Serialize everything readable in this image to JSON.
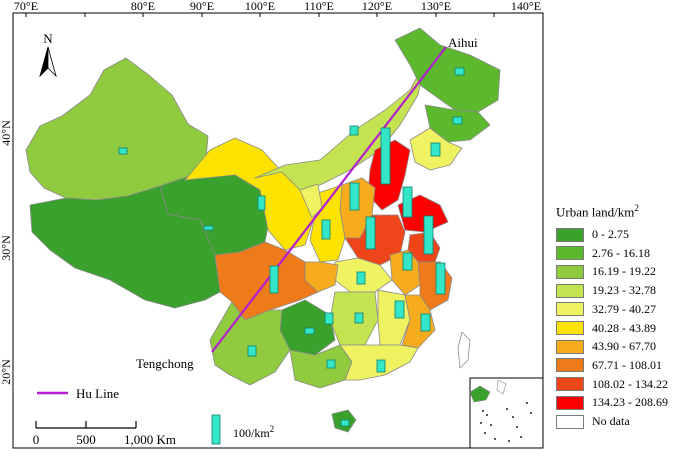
{
  "axis": {
    "longitude_ticks": [
      "70°E",
      "80°E",
      "90°E",
      "100°E",
      "110°E",
      "120°E",
      "130°E",
      "140°E"
    ],
    "latitude_ticks": [
      "40°N",
      "30°N",
      "20°N"
    ]
  },
  "north_arrow": {
    "label": "N"
  },
  "places": {
    "aihui": "Aihui",
    "tengchong": "Tengchong"
  },
  "hu_line": {
    "label": "Hu Line",
    "color": "#b31fd1"
  },
  "scale_bar": {
    "ticks": [
      "0",
      "500",
      "1,000 Km"
    ]
  },
  "bar_symbol": {
    "label": "100/km",
    "label_sup": "2",
    "color": "#33e6c8"
  },
  "legend": {
    "title": "Urban land/km",
    "title_sup": "2",
    "classes": [
      {
        "label": "0 - 2.75",
        "color": "#3aa12c"
      },
      {
        "label": "2.76 - 16.18",
        "color": "#5cb82d"
      },
      {
        "label": "16.19 - 19.22",
        "color": "#8fca3f"
      },
      {
        "label": "19.23 - 32.78",
        "color": "#c4e350"
      },
      {
        "label": "32.79 - 40.27",
        "color": "#eff261"
      },
      {
        "label": "40.28 - 43.89",
        "color": "#fbe200"
      },
      {
        "label": "43.90 - 67.70",
        "color": "#f7ac1e"
      },
      {
        "label": "67.71 - 108.01",
        "color": "#ef7a1a"
      },
      {
        "label": "108.02 - 134.22",
        "color": "#ef4519"
      },
      {
        "label": "134.23 - 208.69",
        "color": "#ff0000"
      },
      {
        "label": "No data",
        "color": "#ffffff"
      }
    ]
  }
}
